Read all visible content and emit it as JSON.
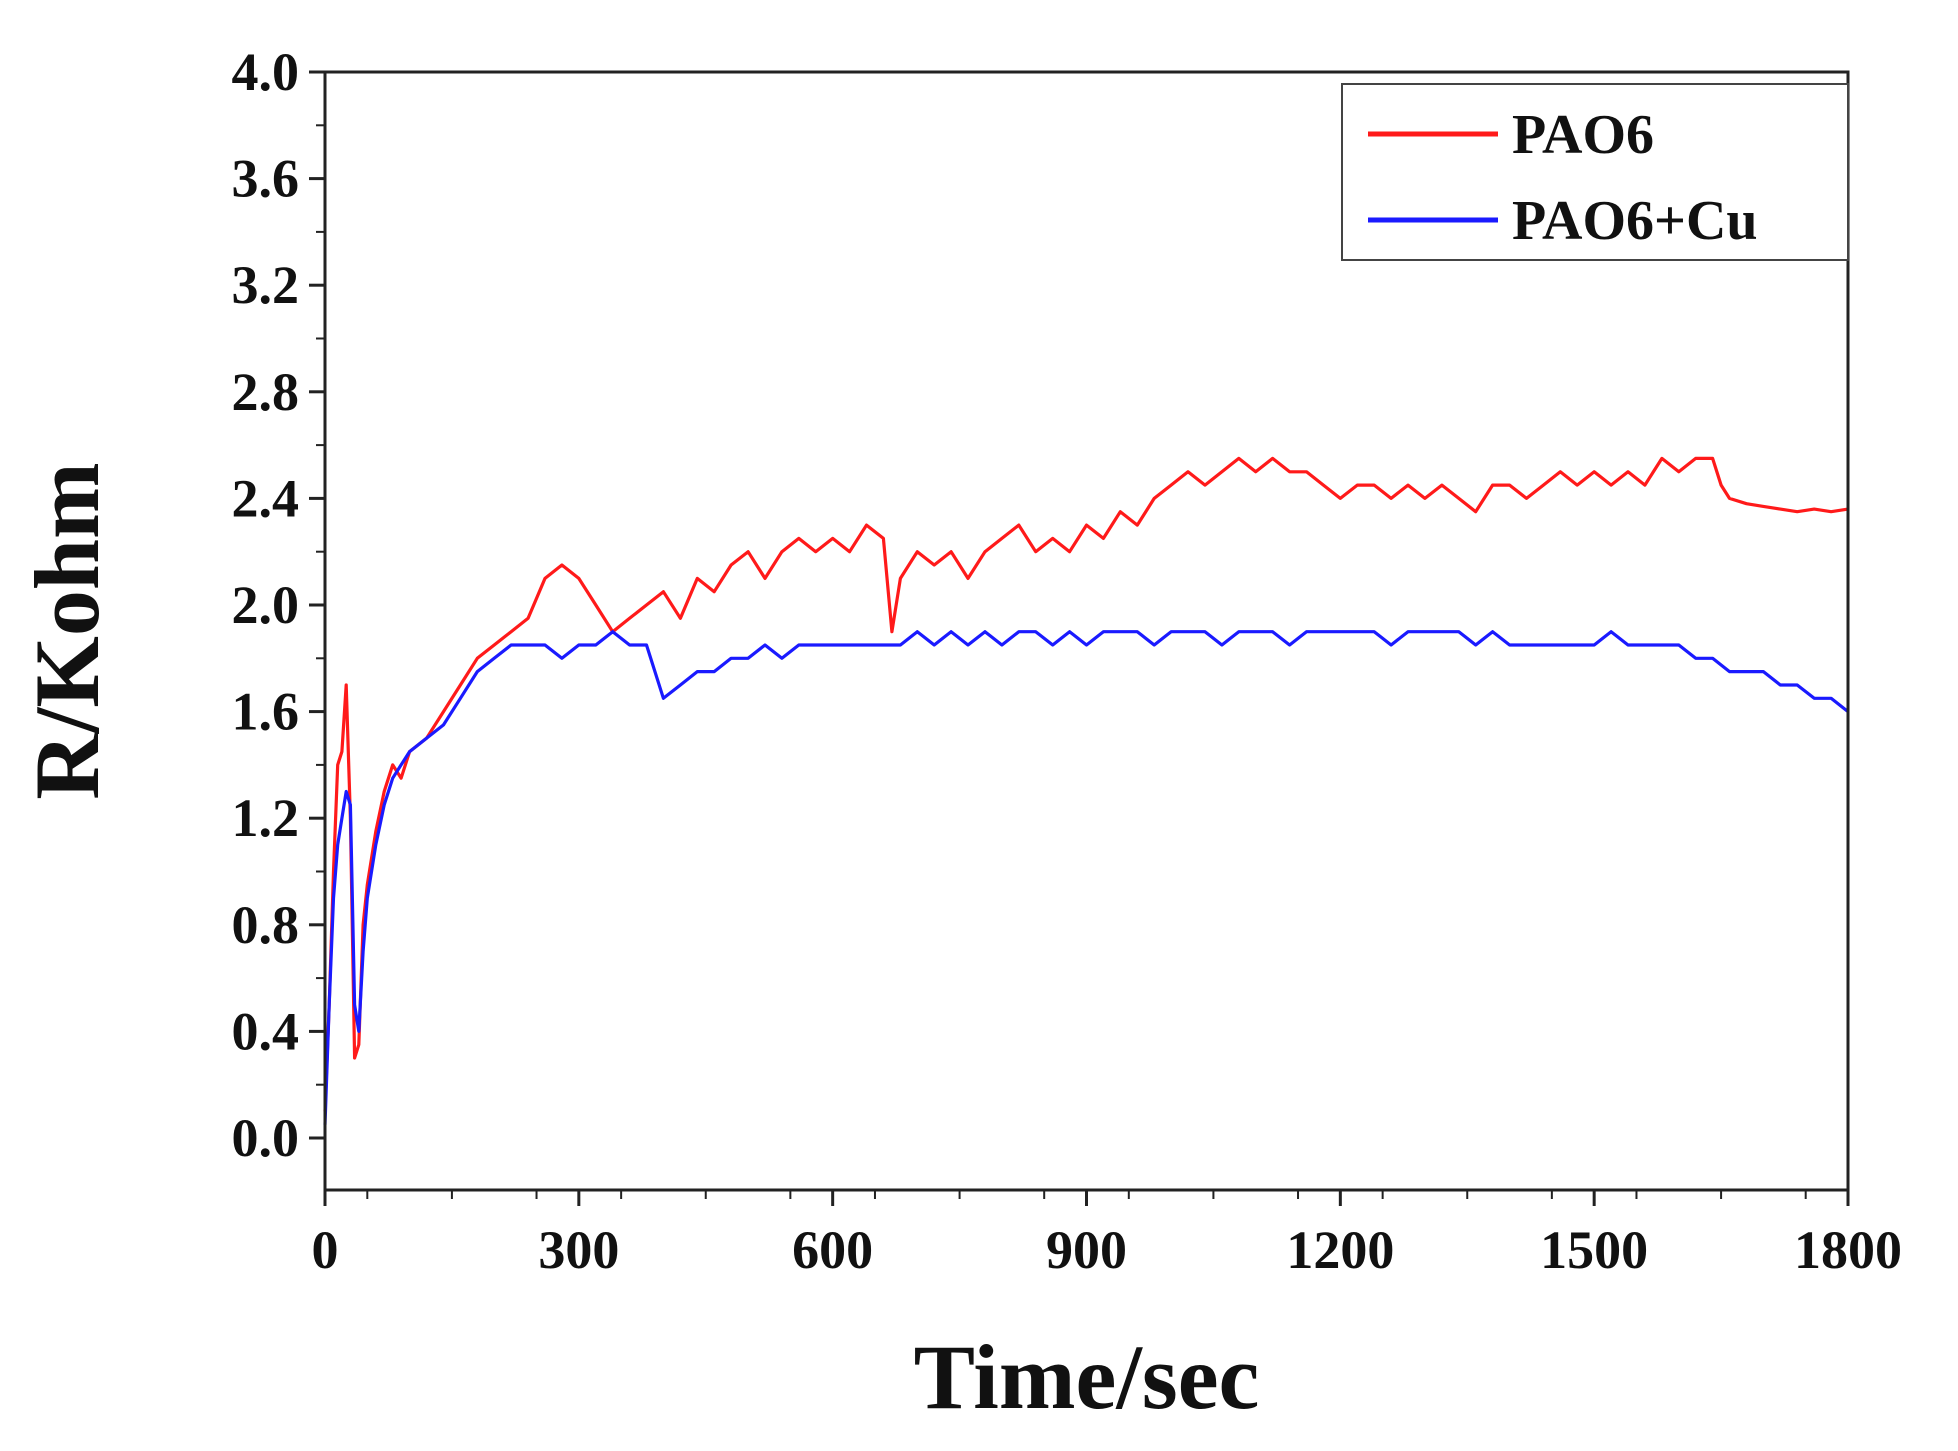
{
  "chart_data": {
    "type": "line",
    "title": "",
    "xlabel": "Time/sec",
    "ylabel": "R/Kohm",
    "xlim": [
      0,
      1800
    ],
    "ylim": [
      0.0,
      4.0
    ],
    "x_ticks": [
      "0",
      "300",
      "600",
      "900",
      "1200",
      "1500",
      "1800"
    ],
    "y_ticks": [
      "0.0",
      "0.4",
      "0.8",
      "1.2",
      "1.6",
      "2.0",
      "2.4",
      "2.8",
      "3.2",
      "3.6",
      "4.0"
    ],
    "legend_position": "top-right",
    "grid": false,
    "series": [
      {
        "name": "PAO6",
        "color": "#ff1a1a",
        "x": [
          0,
          5,
          10,
          15,
          20,
          25,
          30,
          35,
          40,
          45,
          50,
          60,
          70,
          80,
          90,
          100,
          120,
          140,
          160,
          180,
          200,
          220,
          240,
          260,
          280,
          300,
          320,
          340,
          360,
          380,
          400,
          420,
          440,
          460,
          480,
          500,
          520,
          540,
          560,
          580,
          600,
          620,
          640,
          660,
          670,
          680,
          700,
          720,
          740,
          760,
          780,
          800,
          820,
          840,
          860,
          880,
          900,
          920,
          940,
          960,
          980,
          1000,
          1020,
          1040,
          1060,
          1080,
          1100,
          1120,
          1140,
          1160,
          1180,
          1200,
          1220,
          1240,
          1260,
          1280,
          1300,
          1320,
          1340,
          1360,
          1380,
          1400,
          1420,
          1440,
          1460,
          1480,
          1500,
          1520,
          1540,
          1560,
          1580,
          1600,
          1620,
          1640,
          1650,
          1660,
          1680,
          1700,
          1720,
          1740,
          1760,
          1780,
          1800
        ],
        "y": [
          0.1,
          0.5,
          1.0,
          1.4,
          1.45,
          1.7,
          1.2,
          0.3,
          0.35,
          0.8,
          0.95,
          1.15,
          1.3,
          1.4,
          1.35,
          1.45,
          1.5,
          1.6,
          1.7,
          1.8,
          1.85,
          1.9,
          1.95,
          2.1,
          2.15,
          2.1,
          2.0,
          1.9,
          1.95,
          2.0,
          2.05,
          1.95,
          2.1,
          2.05,
          2.15,
          2.2,
          2.1,
          2.2,
          2.25,
          2.2,
          2.25,
          2.2,
          2.3,
          2.25,
          1.9,
          2.1,
          2.2,
          2.15,
          2.2,
          2.1,
          2.2,
          2.25,
          2.3,
          2.2,
          2.25,
          2.2,
          2.3,
          2.25,
          2.35,
          2.3,
          2.4,
          2.45,
          2.5,
          2.45,
          2.5,
          2.55,
          2.5,
          2.55,
          2.5,
          2.5,
          2.45,
          2.4,
          2.45,
          2.45,
          2.4,
          2.45,
          2.4,
          2.45,
          2.4,
          2.35,
          2.45,
          2.45,
          2.4,
          2.45,
          2.5,
          2.45,
          2.5,
          2.45,
          2.5,
          2.45,
          2.55,
          2.5,
          2.55,
          2.55,
          2.45,
          2.4,
          2.38,
          2.37,
          2.36,
          2.35,
          2.36,
          2.35,
          2.36
        ]
      },
      {
        "name": "PAO6+Cu",
        "color": "#1a1aff",
        "x": [
          0,
          5,
          10,
          15,
          20,
          25,
          30,
          35,
          40,
          45,
          50,
          60,
          70,
          80,
          90,
          100,
          120,
          140,
          160,
          180,
          200,
          220,
          240,
          260,
          280,
          300,
          320,
          340,
          360,
          380,
          400,
          420,
          440,
          460,
          480,
          500,
          520,
          540,
          560,
          580,
          600,
          620,
          640,
          660,
          680,
          700,
          720,
          740,
          760,
          780,
          800,
          820,
          840,
          860,
          880,
          900,
          920,
          940,
          960,
          980,
          1000,
          1020,
          1040,
          1060,
          1080,
          1100,
          1120,
          1140,
          1160,
          1180,
          1200,
          1220,
          1240,
          1260,
          1280,
          1300,
          1320,
          1340,
          1360,
          1380,
          1400,
          1420,
          1440,
          1460,
          1480,
          1500,
          1520,
          1540,
          1560,
          1580,
          1600,
          1620,
          1640,
          1660,
          1680,
          1700,
          1720,
          1740,
          1760,
          1780,
          1800
        ],
        "y": [
          0.05,
          0.5,
          0.9,
          1.1,
          1.2,
          1.3,
          1.25,
          0.5,
          0.4,
          0.7,
          0.9,
          1.1,
          1.25,
          1.35,
          1.4,
          1.45,
          1.5,
          1.55,
          1.65,
          1.75,
          1.8,
          1.85,
          1.85,
          1.85,
          1.8,
          1.85,
          1.85,
          1.9,
          1.85,
          1.85,
          1.65,
          1.7,
          1.75,
          1.75,
          1.8,
          1.8,
          1.85,
          1.8,
          1.85,
          1.85,
          1.85,
          1.85,
          1.85,
          1.85,
          1.85,
          1.9,
          1.85,
          1.9,
          1.85,
          1.9,
          1.85,
          1.9,
          1.9,
          1.85,
          1.9,
          1.85,
          1.9,
          1.9,
          1.9,
          1.85,
          1.9,
          1.9,
          1.9,
          1.85,
          1.9,
          1.9,
          1.9,
          1.85,
          1.9,
          1.9,
          1.9,
          1.9,
          1.9,
          1.85,
          1.9,
          1.9,
          1.9,
          1.9,
          1.85,
          1.9,
          1.85,
          1.85,
          1.85,
          1.85,
          1.85,
          1.85,
          1.9,
          1.85,
          1.85,
          1.85,
          1.85,
          1.8,
          1.8,
          1.75,
          1.75,
          1.75,
          1.7,
          1.7,
          1.65,
          1.65,
          1.6
        ]
      }
    ]
  }
}
